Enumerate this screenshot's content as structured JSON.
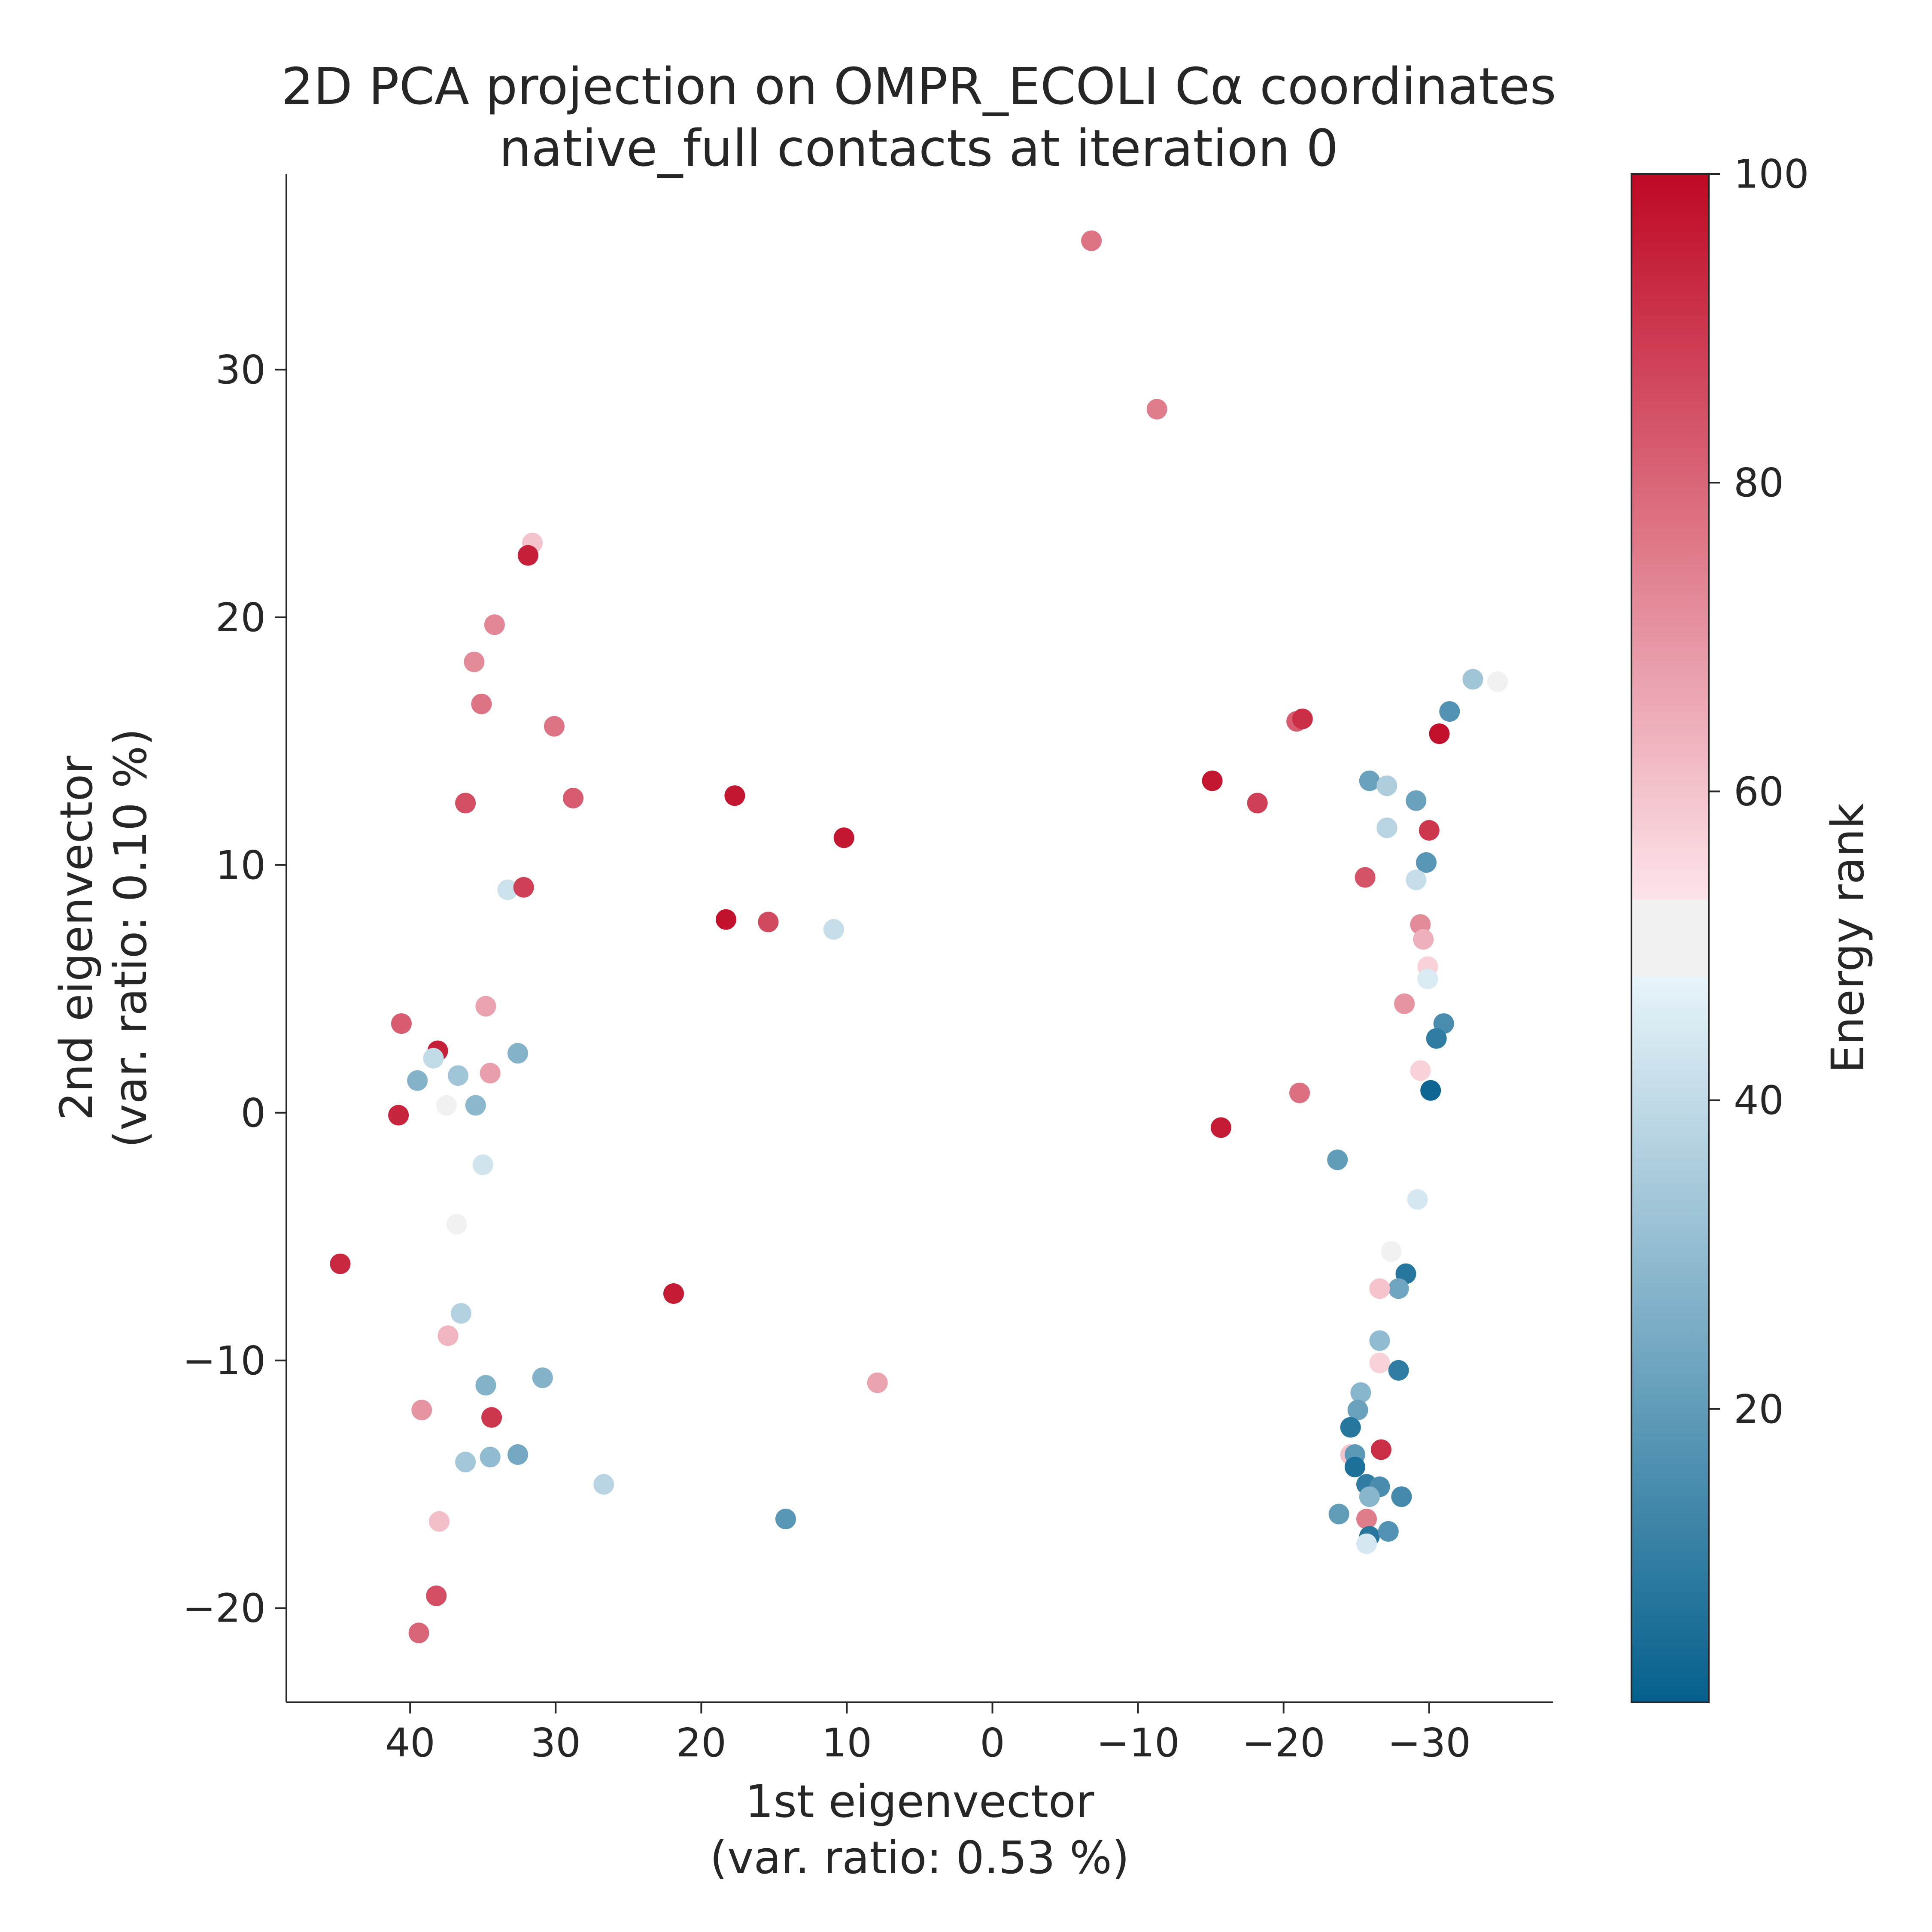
{
  "chart_data": {
    "type": "scatter",
    "title": "2D PCA projection on OMPR_ECOLI Cα coordinates",
    "subtitle": "native_full contacts at iteration 0",
    "xlabel": "1st eigenvector",
    "xlabel2": "(var. ratio: 0.53 %)",
    "ylabel": "2nd eigenvector",
    "ylabel2": "(var. ratio: 0.10 %)",
    "x_inverted": true,
    "xlim": [
      48.5,
      -38.5
    ],
    "ylim": [
      -23.8,
      37.9
    ],
    "x_ticks": [
      40,
      30,
      20,
      10,
      0,
      -10,
      -20,
      -30
    ],
    "x_tick_labels": [
      "40",
      "30",
      "20",
      "10",
      "0",
      "−10",
      "−20",
      "−30"
    ],
    "y_ticks": [
      30,
      20,
      10,
      0,
      -10,
      -20
    ],
    "y_tick_labels": [
      "30",
      "20",
      "10",
      "0",
      "−10",
      "−20"
    ],
    "grid": false,
    "colorbar": {
      "label": "Energy rank",
      "min": 1,
      "max": 100,
      "ticks": [
        20,
        40,
        60,
        80,
        100
      ],
      "tick_labels": [
        "20",
        "40",
        "60",
        "80",
        "100"
      ],
      "color_low": "#05608d",
      "color_mid": "#f1f1f1",
      "color_high": "#bf0824"
    },
    "points": [
      {
        "x": -6.8,
        "y": 35.2,
        "rank": 77
      },
      {
        "x": -11.3,
        "y": 28.4,
        "rank": 75
      },
      {
        "x": 31.6,
        "y": 23.0,
        "rank": 60
      },
      {
        "x": 31.9,
        "y": 22.5,
        "rank": 95
      },
      {
        "x": 34.2,
        "y": 19.7,
        "rank": 73
      },
      {
        "x": 35.6,
        "y": 18.2,
        "rank": 72
      },
      {
        "x": 35.1,
        "y": 16.5,
        "rank": 77
      },
      {
        "x": 30.1,
        "y": 15.6,
        "rank": 77
      },
      {
        "x": 28.8,
        "y": 12.7,
        "rank": 82
      },
      {
        "x": 36.2,
        "y": 12.5,
        "rank": 85
      },
      {
        "x": 17.7,
        "y": 12.8,
        "rank": 97
      },
      {
        "x": 10.2,
        "y": 11.1,
        "rank": 97
      },
      {
        "x": 33.3,
        "y": 9.0,
        "rank": 42
      },
      {
        "x": 32.2,
        "y": 9.1,
        "rank": 88
      },
      {
        "x": 18.3,
        "y": 7.8,
        "rank": 98
      },
      {
        "x": 15.4,
        "y": 7.7,
        "rank": 86
      },
      {
        "x": 10.9,
        "y": 7.4,
        "rank": 41
      },
      {
        "x": 40.6,
        "y": 3.6,
        "rank": 82
      },
      {
        "x": 38.1,
        "y": 2.5,
        "rank": 95
      },
      {
        "x": 38.4,
        "y": 2.2,
        "rank": 40
      },
      {
        "x": 34.8,
        "y": 4.3,
        "rank": 67
      },
      {
        "x": 32.6,
        "y": 2.4,
        "rank": 27
      },
      {
        "x": 39.5,
        "y": 1.3,
        "rank": 27
      },
      {
        "x": 36.7,
        "y": 1.5,
        "rank": 33
      },
      {
        "x": 34.5,
        "y": 1.6,
        "rank": 68
      },
      {
        "x": 40.8,
        "y": -0.1,
        "rank": 94
      },
      {
        "x": 37.5,
        "y": 0.3,
        "rank": 51
      },
      {
        "x": 35.5,
        "y": 0.3,
        "rank": 29
      },
      {
        "x": 35.0,
        "y": -2.1,
        "rank": 43
      },
      {
        "x": 36.8,
        "y": -4.5,
        "rank": 51
      },
      {
        "x": 44.8,
        "y": -6.1,
        "rank": 93
      },
      {
        "x": 21.9,
        "y": -7.3,
        "rank": 96
      },
      {
        "x": 36.5,
        "y": -8.1,
        "rank": 37
      },
      {
        "x": 37.4,
        "y": -9.0,
        "rank": 63
      },
      {
        "x": 34.8,
        "y": -11.0,
        "rank": 27
      },
      {
        "x": 30.9,
        "y": -10.7,
        "rank": 27
      },
      {
        "x": 7.9,
        "y": -10.9,
        "rank": 67
      },
      {
        "x": 39.2,
        "y": -12.0,
        "rank": 70
      },
      {
        "x": 34.4,
        "y": -12.3,
        "rank": 90
      },
      {
        "x": 36.2,
        "y": -14.1,
        "rank": 34
      },
      {
        "x": 34.5,
        "y": -13.9,
        "rank": 30
      },
      {
        "x": 32.6,
        "y": -13.8,
        "rank": 24
      },
      {
        "x": 26.7,
        "y": -15.0,
        "rank": 38
      },
      {
        "x": 14.2,
        "y": -16.4,
        "rank": 18
      },
      {
        "x": 38.0,
        "y": -16.5,
        "rank": 61
      },
      {
        "x": 38.2,
        "y": -19.5,
        "rank": 85
      },
      {
        "x": 39.4,
        "y": -21.0,
        "rank": 80
      },
      {
        "x": -15.1,
        "y": 13.4,
        "rank": 97
      },
      {
        "x": -18.2,
        "y": 12.5,
        "rank": 88
      },
      {
        "x": -20.9,
        "y": 15.8,
        "rank": 82
      },
      {
        "x": -21.3,
        "y": 15.9,
        "rank": 92
      },
      {
        "x": -21.1,
        "y": 0.8,
        "rank": 78
      },
      {
        "x": -15.7,
        "y": -0.6,
        "rank": 96
      },
      {
        "x": -23.7,
        "y": -1.9,
        "rank": 20
      },
      {
        "x": -25.9,
        "y": 13.4,
        "rank": 22
      },
      {
        "x": -27.1,
        "y": 13.2,
        "rank": 36
      },
      {
        "x": -27.1,
        "y": 11.5,
        "rank": 38
      },
      {
        "x": -25.6,
        "y": 9.5,
        "rank": 84
      },
      {
        "x": -29.1,
        "y": 12.6,
        "rank": 22
      },
      {
        "x": -29.8,
        "y": 10.1,
        "rank": 18
      },
      {
        "x": -30.0,
        "y": 11.4,
        "rank": 90
      },
      {
        "x": -29.1,
        "y": 9.4,
        "rank": 41
      },
      {
        "x": -29.4,
        "y": 7.6,
        "rank": 72
      },
      {
        "x": -29.6,
        "y": 7.0,
        "rank": 64
      },
      {
        "x": -29.9,
        "y": 5.9,
        "rank": 57
      },
      {
        "x": -29.9,
        "y": 5.4,
        "rank": 45
      },
      {
        "x": -28.3,
        "y": 4.4,
        "rank": 70
      },
      {
        "x": -31.0,
        "y": 3.6,
        "rank": 15
      },
      {
        "x": -30.5,
        "y": 3.0,
        "rank": 10
      },
      {
        "x": -29.4,
        "y": 1.7,
        "rank": 57
      },
      {
        "x": -30.1,
        "y": 0.9,
        "rank": 3
      },
      {
        "x": -30.7,
        "y": 15.3,
        "rank": 98
      },
      {
        "x": -31.4,
        "y": 16.2,
        "rank": 17
      },
      {
        "x": -33.0,
        "y": 17.5,
        "rank": 33
      },
      {
        "x": -34.7,
        "y": 17.4,
        "rank": 52
      },
      {
        "x": -29.2,
        "y": -3.5,
        "rank": 44
      },
      {
        "x": -27.4,
        "y": -5.6,
        "rank": 51
      },
      {
        "x": -28.4,
        "y": -6.5,
        "rank": 8
      },
      {
        "x": -27.9,
        "y": -7.1,
        "rank": 23
      },
      {
        "x": -26.6,
        "y": -7.1,
        "rank": 60
      },
      {
        "x": -26.6,
        "y": -9.2,
        "rank": 30
      },
      {
        "x": -26.6,
        "y": -10.1,
        "rank": 57
      },
      {
        "x": -27.9,
        "y": -10.4,
        "rank": 10
      },
      {
        "x": -25.3,
        "y": -11.3,
        "rank": 28
      },
      {
        "x": -25.1,
        "y": -12.0,
        "rank": 22
      },
      {
        "x": -24.6,
        "y": -12.7,
        "rank": 8
      },
      {
        "x": -26.7,
        "y": -13.6,
        "rank": 92
      },
      {
        "x": -24.6,
        "y": -13.8,
        "rank": 60
      },
      {
        "x": -24.9,
        "y": -13.8,
        "rank": 19
      },
      {
        "x": -24.9,
        "y": -14.3,
        "rank": 6
      },
      {
        "x": -25.7,
        "y": -15.0,
        "rank": 10
      },
      {
        "x": -26.6,
        "y": -15.1,
        "rank": 15
      },
      {
        "x": -25.9,
        "y": -15.5,
        "rank": 28
      },
      {
        "x": -28.1,
        "y": -15.5,
        "rank": 14
      },
      {
        "x": -23.8,
        "y": -16.2,
        "rank": 20
      },
      {
        "x": -25.7,
        "y": -16.4,
        "rank": 75
      },
      {
        "x": -25.9,
        "y": -17.1,
        "rank": 8
      },
      {
        "x": -27.2,
        "y": -16.9,
        "rank": 17
      },
      {
        "x": -25.7,
        "y": -17.4,
        "rank": 44
      }
    ]
  }
}
